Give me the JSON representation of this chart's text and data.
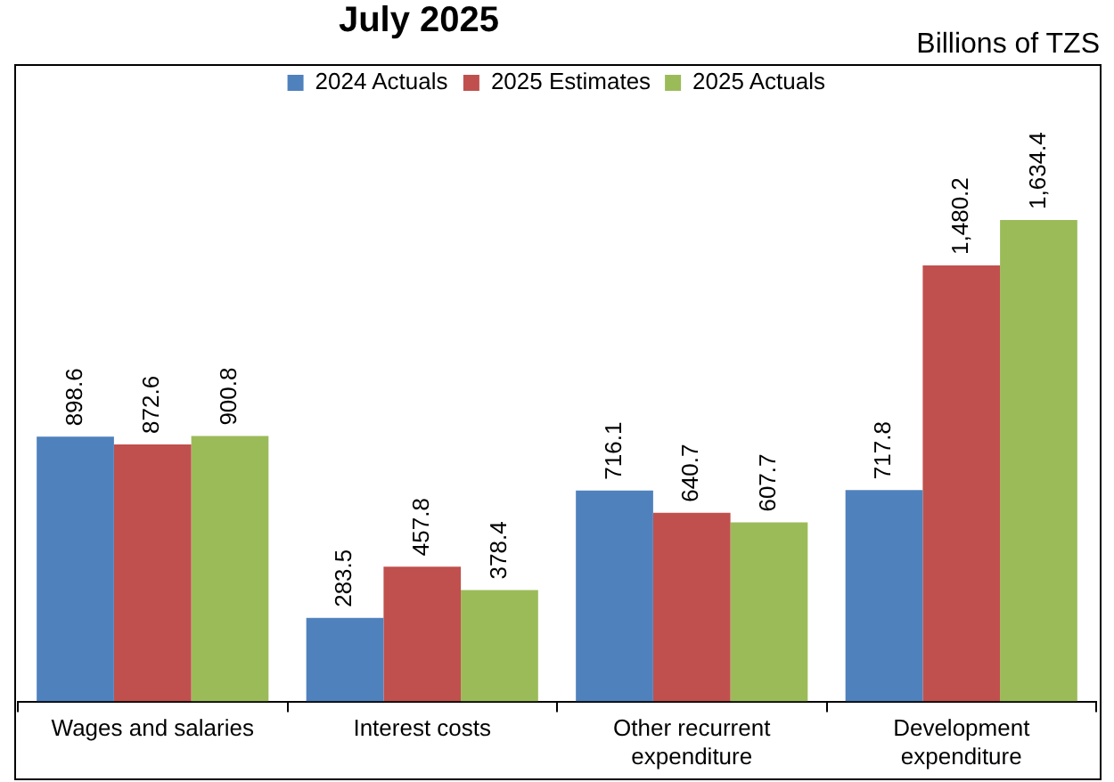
{
  "chart_data": {
    "type": "bar",
    "title": "July 2025",
    "annotations": [
      "Billions of TZS"
    ],
    "categories": [
      "Wages and salaries",
      "Interest costs",
      "Other recurrent expenditure",
      "Development expenditure"
    ],
    "series": [
      {
        "name": "2024 Actuals",
        "color": "#4f81bd",
        "values": [
          898.6,
          283.5,
          716.1,
          717.8
        ],
        "value_labels": [
          "898.6",
          "283.5",
          "716.1",
          "717.8"
        ]
      },
      {
        "name": "2025 Estimates",
        "color": "#c0504d",
        "values": [
          872.6,
          457.8,
          640.7,
          1480.2
        ],
        "value_labels": [
          "872.6",
          "457.8",
          "640.7",
          "1,480.2"
        ]
      },
      {
        "name": "2025 Actuals",
        "color": "#9bbb59",
        "values": [
          900.8,
          378.4,
          607.7,
          1634.4
        ],
        "value_labels": [
          "900.8",
          "378.4",
          "607.7",
          "1,634.4"
        ]
      }
    ],
    "legend": "top",
    "grid": false
  }
}
